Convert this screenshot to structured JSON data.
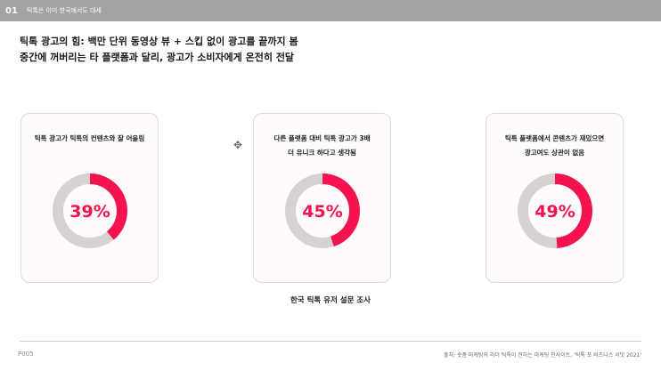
{
  "header": {
    "section_number": "01",
    "section_title": "틱톡은 이미 한국에서도 대세"
  },
  "heading": {
    "line1": "틱톡 광고의 힘: 백만 단위 동영상 뷰 + 스킵 없이 광고를 끝까지 봄",
    "line2": "중간에 꺼버리는 타 플랫폼과 달리, 광고가 소비자에게 온전히 전달"
  },
  "cards": [
    {
      "title_line1": "틱톡 광고가 틱톡의 컨텐츠와 잘 어울림",
      "title_line2": "",
      "percent": 39,
      "percent_label": "39%"
    },
    {
      "title_line1": "다른 플랫폼 대비 틱톡 광고가 3배",
      "title_line2": "더 유니크 하다고 생각됨",
      "percent": 45,
      "percent_label": "45%"
    },
    {
      "title_line1": "틱톡 플랫폼에서 콘텐츠가 재밌으면",
      "title_line2": "광고여도 상관이 없음",
      "percent": 49,
      "percent_label": "49%"
    }
  ],
  "colors": {
    "accent": "#f5134f",
    "track": "#d6d2d2",
    "topbar": "#a3a3a3"
  },
  "survey_caption": "한국 틱톡 유저 설문 조사",
  "footer": {
    "page_number": "P005",
    "source": "출처: 숏폼 마케팅의 리더 틱톡이 전하는 마케팅 인사이트, '틱톡 포 비즈니스 서밋 2021'"
  }
}
